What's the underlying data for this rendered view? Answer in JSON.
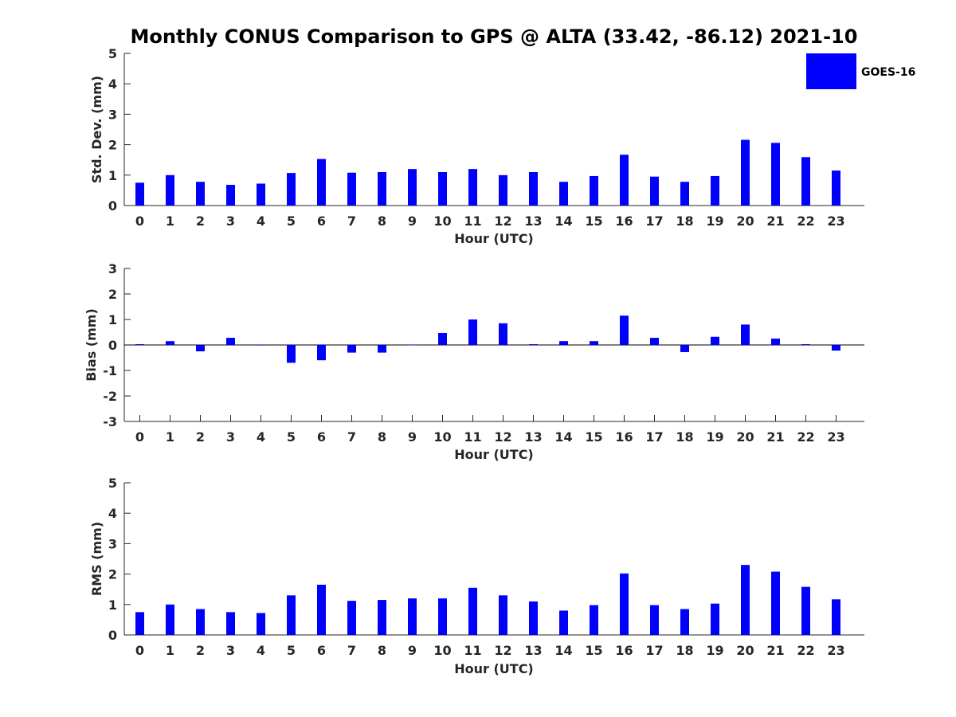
{
  "figure": {
    "title": "Monthly CONUS Comparison to GPS @ ALTA (33.42, -86.12) 2021-10",
    "legend": {
      "label": "GOES-16",
      "color": "#0000ff",
      "placement": "top-right"
    }
  },
  "chart_data": [
    {
      "type": "bar",
      "xlabel": "Hour (UTC)",
      "ylabel": "Std. Dev. (mm)",
      "ylim": [
        0,
        5
      ],
      "yticks": [
        0,
        1,
        2,
        3,
        4,
        5
      ],
      "categories": [
        "0",
        "1",
        "2",
        "3",
        "4",
        "5",
        "6",
        "7",
        "8",
        "9",
        "10",
        "11",
        "12",
        "13",
        "14",
        "15",
        "16",
        "17",
        "18",
        "19",
        "20",
        "21",
        "22",
        "23"
      ],
      "series": [
        {
          "name": "GOES-16",
          "color": "#0000ff",
          "values": [
            0.75,
            1.0,
            0.78,
            0.68,
            0.72,
            1.07,
            1.53,
            1.08,
            1.1,
            1.2,
            1.1,
            1.2,
            1.0,
            1.1,
            0.78,
            0.97,
            1.67,
            0.95,
            0.78,
            0.97,
            2.16,
            2.06,
            1.59,
            1.15
          ]
        }
      ],
      "grid": false
    },
    {
      "type": "bar",
      "xlabel": "Hour (UTC)",
      "ylabel": "Bias (mm)",
      "ylim": [
        -3,
        3
      ],
      "yticks": [
        -3,
        -2,
        -1,
        0,
        1,
        2,
        3
      ],
      "categories": [
        "0",
        "1",
        "2",
        "3",
        "4",
        "5",
        "6",
        "7",
        "8",
        "9",
        "10",
        "11",
        "12",
        "13",
        "14",
        "15",
        "16",
        "17",
        "18",
        "19",
        "20",
        "21",
        "22",
        "23"
      ],
      "series": [
        {
          "name": "GOES-16",
          "color": "#0000ff",
          "values": [
            0.03,
            0.15,
            -0.25,
            0.28,
            -0.02,
            -0.7,
            -0.6,
            -0.3,
            -0.3,
            -0.01,
            0.47,
            1.0,
            0.85,
            0.03,
            0.15,
            0.15,
            1.15,
            0.28,
            -0.28,
            0.32,
            0.8,
            0.25,
            0.03,
            -0.22
          ]
        }
      ],
      "grid": false
    },
    {
      "type": "bar",
      "xlabel": "Hour (UTC)",
      "ylabel": "RMS (mm)",
      "ylim": [
        0,
        5
      ],
      "yticks": [
        0,
        1,
        2,
        3,
        4,
        5
      ],
      "categories": [
        "0",
        "1",
        "2",
        "3",
        "4",
        "5",
        "6",
        "7",
        "8",
        "9",
        "10",
        "11",
        "12",
        "13",
        "14",
        "15",
        "16",
        "17",
        "18",
        "19",
        "20",
        "21",
        "22",
        "23"
      ],
      "series": [
        {
          "name": "GOES-16",
          "color": "#0000ff",
          "values": [
            0.75,
            1.0,
            0.85,
            0.75,
            0.72,
            1.3,
            1.65,
            1.12,
            1.15,
            1.2,
            1.2,
            1.55,
            1.3,
            1.1,
            0.8,
            0.98,
            2.02,
            0.98,
            0.85,
            1.03,
            2.3,
            2.08,
            1.58,
            1.17
          ]
        }
      ],
      "grid": false
    }
  ]
}
